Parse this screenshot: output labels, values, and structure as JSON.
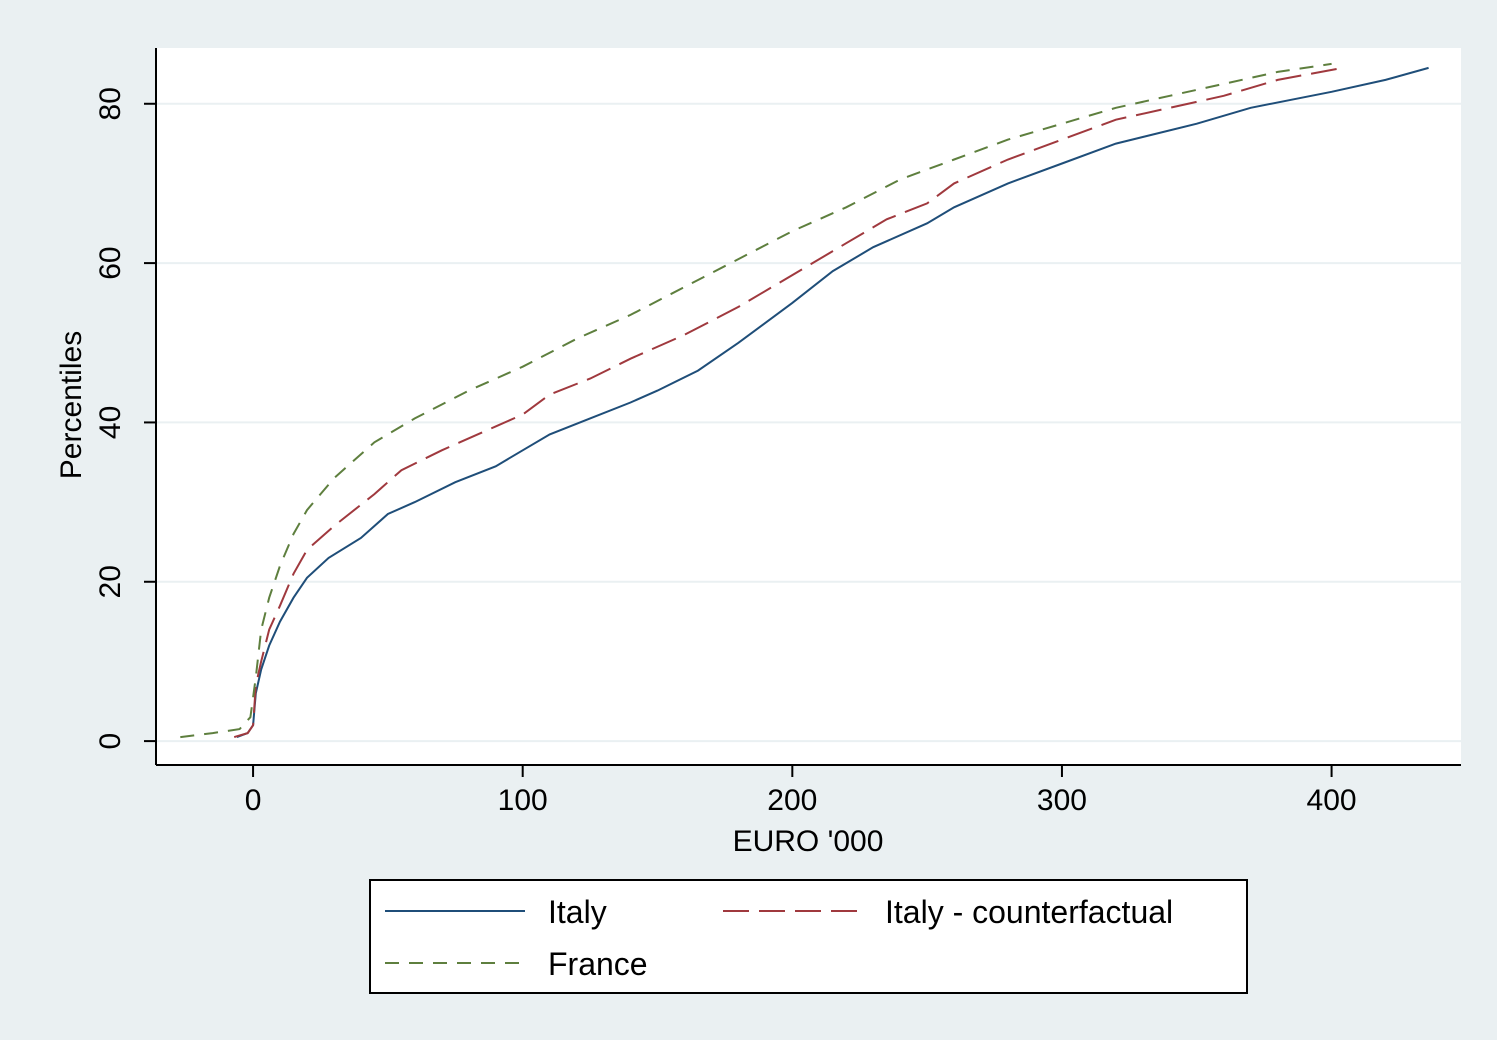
{
  "colors": {
    "frame_bg": "#eaf0f2",
    "plot_bg": "#ffffff",
    "gridline": "#eaf0f2",
    "axis": "#000000"
  },
  "chart_data": {
    "type": "line",
    "title": "",
    "xlabel": "EURO '000",
    "ylabel": "Percentiles",
    "xlim": [
      -36,
      448
    ],
    "ylim": [
      -3,
      87
    ],
    "xticks": [
      0,
      100,
      200,
      300,
      400
    ],
    "yticks": [
      0,
      20,
      40,
      60,
      80
    ],
    "grid": "horizontal",
    "legend_position": "bottom",
    "series": [
      {
        "name": "Italy",
        "color": "#1f4e79",
        "dash": "solid",
        "points": [
          [
            -6,
            0.5
          ],
          [
            -2,
            1
          ],
          [
            0,
            2
          ],
          [
            1,
            6
          ],
          [
            3,
            9
          ],
          [
            6,
            12
          ],
          [
            10,
            15
          ],
          [
            15,
            18
          ],
          [
            20,
            20.5
          ],
          [
            28,
            23
          ],
          [
            40,
            25.5
          ],
          [
            50,
            28.5
          ],
          [
            60,
            30
          ],
          [
            75,
            32.5
          ],
          [
            90,
            34.5
          ],
          [
            100,
            36.5
          ],
          [
            110,
            38.5
          ],
          [
            125,
            40.5
          ],
          [
            140,
            42.5
          ],
          [
            150,
            44
          ],
          [
            165,
            46.5
          ],
          [
            180,
            50
          ],
          [
            200,
            55
          ],
          [
            215,
            59
          ],
          [
            230,
            62
          ],
          [
            250,
            65
          ],
          [
            260,
            67
          ],
          [
            280,
            70
          ],
          [
            300,
            72.5
          ],
          [
            320,
            75
          ],
          [
            350,
            77.5
          ],
          [
            370,
            79.5
          ],
          [
            385,
            80.5
          ],
          [
            400,
            81.5
          ],
          [
            420,
            83
          ],
          [
            436,
            84.5
          ]
        ]
      },
      {
        "name": "Italy - counterfactual",
        "color": "#a0393e",
        "dash": "long",
        "points": [
          [
            -7,
            0.5
          ],
          [
            -2,
            1
          ],
          [
            0,
            2
          ],
          [
            1,
            7
          ],
          [
            3,
            10
          ],
          [
            6,
            14
          ],
          [
            10,
            17
          ],
          [
            15,
            21
          ],
          [
            20,
            24
          ],
          [
            30,
            27
          ],
          [
            45,
            31
          ],
          [
            55,
            34
          ],
          [
            70,
            36.5
          ],
          [
            90,
            39.5
          ],
          [
            100,
            41
          ],
          [
            110,
            43.5
          ],
          [
            125,
            45.5
          ],
          [
            140,
            48
          ],
          [
            160,
            51
          ],
          [
            180,
            54.5
          ],
          [
            200,
            58.5
          ],
          [
            220,
            62.5
          ],
          [
            235,
            65.5
          ],
          [
            250,
            67.5
          ],
          [
            260,
            70
          ],
          [
            280,
            73
          ],
          [
            300,
            75.5
          ],
          [
            320,
            78
          ],
          [
            340,
            79.5
          ],
          [
            360,
            81
          ],
          [
            380,
            83
          ],
          [
            404,
            84.5
          ]
        ]
      },
      {
        "name": "France",
        "color": "#5e7f3e",
        "dash": "short",
        "points": [
          [
            -27,
            0.5
          ],
          [
            -15,
            1
          ],
          [
            -5,
            1.5
          ],
          [
            -1,
            3
          ],
          [
            1,
            8
          ],
          [
            3,
            14
          ],
          [
            6,
            18
          ],
          [
            10,
            22
          ],
          [
            15,
            26
          ],
          [
            20,
            29
          ],
          [
            30,
            33
          ],
          [
            45,
            37.5
          ],
          [
            60,
            40.5
          ],
          [
            80,
            44
          ],
          [
            100,
            47
          ],
          [
            120,
            50.5
          ],
          [
            140,
            53.5
          ],
          [
            160,
            57
          ],
          [
            180,
            60.5
          ],
          [
            200,
            64
          ],
          [
            220,
            67
          ],
          [
            240,
            70.5
          ],
          [
            260,
            73
          ],
          [
            280,
            75.5
          ],
          [
            300,
            77.5
          ],
          [
            320,
            79.5
          ],
          [
            340,
            81
          ],
          [
            360,
            82.5
          ],
          [
            380,
            84
          ],
          [
            400,
            85
          ]
        ]
      }
    ]
  }
}
